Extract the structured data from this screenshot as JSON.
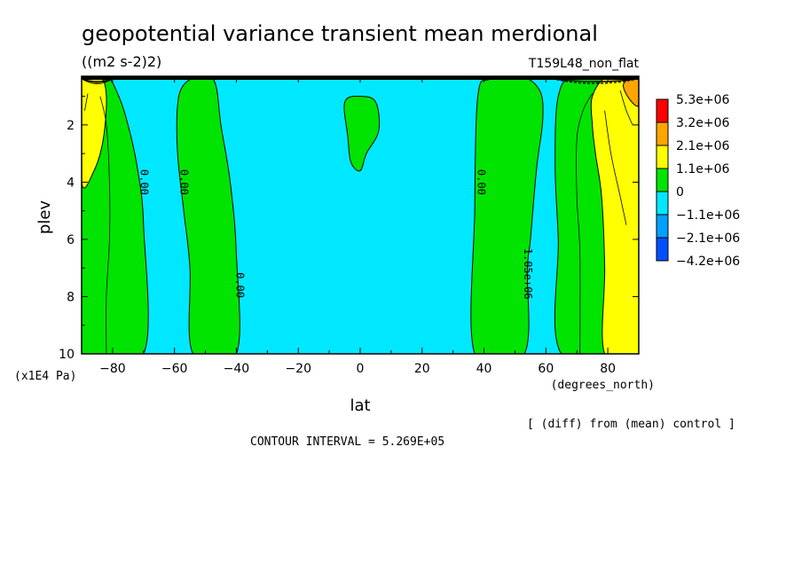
{
  "chart_data": {
    "type": "contour",
    "title": "geopotential variance transient mean merdional",
    "units": "((m2 s-2)2)",
    "run_label": "T159L48_non_flat",
    "xlabel": "lat",
    "xunits": "(degrees_north)",
    "ylabel": "plev",
    "yunits": "(x1E4 Pa)",
    "xlim": [
      -90,
      90
    ],
    "ylim": [
      10,
      0.3
    ],
    "x_ticks": [
      -80,
      -60,
      -40,
      -20,
      0,
      20,
      40,
      60,
      80
    ],
    "y_ticks": [
      2,
      4,
      6,
      8,
      10
    ],
    "note": "[ (diff) from (mean) control ]",
    "contour_interval": "CONTOUR INTERVAL = 5.269E+05",
    "colorbar": {
      "levels": [
        "5.3e+06",
        "3.2e+06",
        "2.1e+06",
        "1.1e+06",
        "0",
        "-1.1e+06",
        "-2.1e+06",
        "-4.2e+06"
      ],
      "colors": [
        "#ff0000",
        "#ffa500",
        "#ffff00",
        "#00e400",
        "#00e8ff",
        "#00a0ff",
        "#0050ff"
      ]
    },
    "regions": [
      {
        "color": "#00e400",
        "label": "0.00",
        "boundary": [
          [
            -90,
            0.3
          ],
          [
            -82,
            0.3
          ],
          [
            -78,
            1.0
          ],
          [
            -75,
            2.0
          ],
          [
            -72,
            3.5
          ],
          [
            -70,
            5.5
          ],
          [
            -70,
            10
          ],
          [
            -90,
            10
          ]
        ]
      },
      {
        "color": "#ffff00",
        "boundary": [
          [
            -90,
            0.3
          ],
          [
            -84,
            0.3
          ],
          [
            -82,
            1.0
          ],
          [
            -83,
            2.5
          ],
          [
            -86,
            3.6
          ],
          [
            -90,
            4.0
          ]
        ]
      },
      {
        "color": "#00e400",
        "label": "0.00",
        "boundary": [
          [
            -57,
            0.6
          ],
          [
            -52,
            0.3
          ],
          [
            -47,
            0.5
          ],
          [
            -45,
            2.0
          ],
          [
            -42,
            4.0
          ],
          [
            -40,
            6.5
          ],
          [
            -40,
            10
          ],
          [
            -54,
            10
          ],
          [
            -55,
            7.0
          ],
          [
            -57,
            5.0
          ],
          [
            -59,
            3.0
          ],
          [
            -59,
            1.3
          ]
        ]
      },
      {
        "color": "#00e400",
        "boundary": [
          [
            -5,
            1.2
          ],
          [
            0,
            1.0
          ],
          [
            5,
            1.2
          ],
          [
            6,
            2.2
          ],
          [
            2,
            3.0
          ],
          [
            0,
            3.6
          ],
          [
            -3,
            3.3
          ],
          [
            -4,
            2.4
          ]
        ]
      },
      {
        "color": "#00e400",
        "label": "0.00",
        "boundary": [
          [
            38,
            1.0
          ],
          [
            42,
            0.4
          ],
          [
            52,
            0.3
          ],
          [
            58,
            0.8
          ],
          [
            59,
            1.8
          ],
          [
            57,
            3.5
          ],
          [
            55,
            6.0
          ],
          [
            54,
            7.0
          ],
          [
            53,
            10
          ],
          [
            37,
            10
          ],
          [
            37,
            5.0
          ]
        ]
      },
      {
        "color": "#00e400",
        "label": "0.00",
        "boundary": [
          [
            64,
            1.0
          ],
          [
            70,
            0.3
          ],
          [
            90,
            0.3
          ],
          [
            90,
            10
          ],
          [
            65,
            10
          ],
          [
            64,
            6.0
          ],
          [
            63,
            3.5
          ]
        ]
      },
      {
        "color": "#ffff00",
        "label": "1.05e+06",
        "boundary": [
          [
            75,
            1.0
          ],
          [
            80,
            0.3
          ],
          [
            90,
            0.3
          ],
          [
            90,
            10
          ],
          [
            79,
            10
          ],
          [
            79,
            7.0
          ],
          [
            78,
            4.5
          ],
          [
            76,
            3.0
          ],
          [
            75,
            2.0
          ]
        ]
      },
      {
        "color": "#ffa500",
        "boundary": [
          [
            85,
            0.6
          ],
          [
            88,
            0.3
          ],
          [
            90,
            0.3
          ],
          [
            90,
            1.3
          ],
          [
            87,
            1.1
          ]
        ]
      }
    ],
    "contour_lines": [
      [
        [
          -84,
          1.0
        ],
        [
          -82,
          2.0
        ],
        [
          -81,
          4.0
        ],
        [
          -81,
          6.0
        ],
        [
          -82,
          8.0
        ],
        [
          -82,
          10
        ]
      ],
      [
        [
          -88,
          0.9
        ],
        [
          -89,
          1.5
        ]
      ],
      [
        [
          79,
          1.5
        ],
        [
          81,
          3.0
        ],
        [
          84,
          4.5
        ],
        [
          86,
          5.5
        ]
      ],
      [
        [
          84,
          0.8
        ],
        [
          86,
          1.5
        ],
        [
          88,
          2.0
        ]
      ],
      [
        [
          75,
          0.9
        ],
        [
          72,
          1.5
        ],
        [
          70,
          2.5
        ],
        [
          70,
          4.5
        ],
        [
          71,
          6.5
        ],
        [
          71,
          10
        ]
      ]
    ],
    "label_positions": [
      [
        -71,
        4.0
      ],
      [
        -58,
        4.0
      ],
      [
        -40,
        7.6
      ],
      [
        38,
        4.0
      ],
      [
        53,
        7.2
      ],
      [
        64,
        4.0
      ],
      [
        78,
        3.5
      ]
    ]
  }
}
